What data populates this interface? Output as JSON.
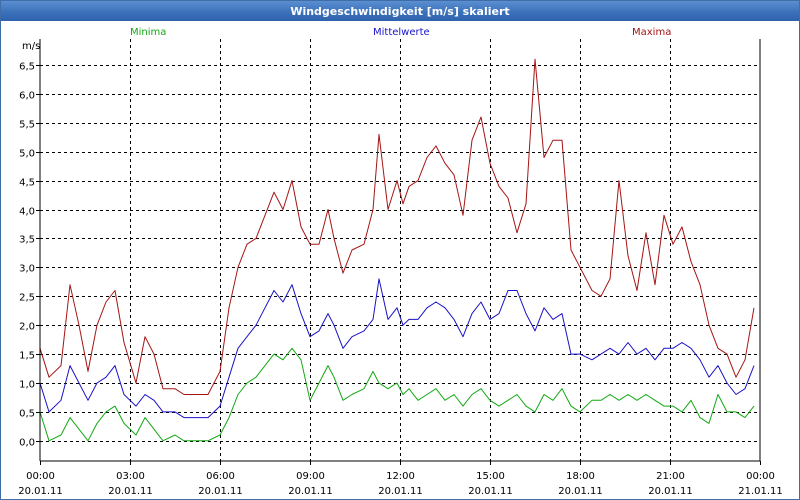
{
  "window": {
    "title": "Windgeschwindigkeit [m/s] skaliert"
  },
  "chart_data": {
    "type": "line",
    "title": "Windgeschwindigkeit [m/s] skaliert",
    "ylabel": "m/s",
    "xlabel": "",
    "ylim": [
      -0.35,
      6.95
    ],
    "yticks": [
      0,
      0.5,
      1,
      1.5,
      2,
      2.5,
      3,
      3.5,
      4,
      4.5,
      5,
      5.5,
      6,
      6.5
    ],
    "ytick_labels": [
      "0,0",
      "0,5",
      "1,0",
      "1,5",
      "2,0",
      "2,5",
      "3,0",
      "3,5",
      "4,0",
      "4,5",
      "5,0",
      "5,5",
      "6,0",
      "6,5"
    ],
    "xlim": [
      0,
      24
    ],
    "xticks": [
      0,
      3,
      6,
      9,
      12,
      15,
      18,
      21,
      24
    ],
    "xtick_labels": [
      {
        "time": "00:00",
        "date": "20.01.11"
      },
      {
        "time": "03:00",
        "date": "20.01.11"
      },
      {
        "time": "06:00",
        "date": "20.01.11"
      },
      {
        "time": "09:00",
        "date": "20.01.11"
      },
      {
        "time": "12:00",
        "date": "20.01.11"
      },
      {
        "time": "15:00",
        "date": "20.01.11"
      },
      {
        "time": "18:00",
        "date": "20.01.11"
      },
      {
        "time": "21:00",
        "date": "20.01.11"
      },
      {
        "time": "00:00",
        "date": "21.01.11"
      }
    ],
    "legend": [
      {
        "name": "Minima",
        "color": "#13a813"
      },
      {
        "name": "Mittelwerte",
        "color": "#1a12c8"
      },
      {
        "name": "Maxima",
        "color": "#a51414"
      }
    ],
    "series": [
      {
        "name": "Maxima",
        "color": "#a51414",
        "points": [
          [
            0.0,
            1.6
          ],
          [
            0.3,
            1.1
          ],
          [
            0.7,
            1.3
          ],
          [
            1.0,
            2.7
          ],
          [
            1.3,
            2.0
          ],
          [
            1.6,
            1.2
          ],
          [
            1.9,
            2.0
          ],
          [
            2.2,
            2.4
          ],
          [
            2.5,
            2.6
          ],
          [
            2.8,
            1.7
          ],
          [
            3.2,
            1.0
          ],
          [
            3.5,
            1.8
          ],
          [
            3.8,
            1.5
          ],
          [
            4.1,
            0.9
          ],
          [
            4.5,
            0.9
          ],
          [
            4.8,
            0.8
          ],
          [
            5.2,
            0.8
          ],
          [
            5.6,
            0.8
          ],
          [
            6.0,
            1.2
          ],
          [
            6.3,
            2.3
          ],
          [
            6.6,
            3.0
          ],
          [
            6.9,
            3.4
          ],
          [
            7.2,
            3.5
          ],
          [
            7.5,
            3.9
          ],
          [
            7.8,
            4.3
          ],
          [
            8.1,
            4.0
          ],
          [
            8.4,
            4.5
          ],
          [
            8.7,
            3.7
          ],
          [
            9.0,
            3.4
          ],
          [
            9.3,
            3.4
          ],
          [
            9.6,
            4.0
          ],
          [
            9.8,
            3.5
          ],
          [
            10.1,
            2.9
          ],
          [
            10.4,
            3.3
          ],
          [
            10.8,
            3.4
          ],
          [
            11.1,
            4.0
          ],
          [
            11.3,
            5.3
          ],
          [
            11.6,
            4.0
          ],
          [
            11.9,
            4.5
          ],
          [
            12.1,
            4.1
          ],
          [
            12.3,
            4.4
          ],
          [
            12.6,
            4.5
          ],
          [
            12.9,
            4.9
          ],
          [
            13.2,
            5.1
          ],
          [
            13.5,
            4.8
          ],
          [
            13.8,
            4.6
          ],
          [
            14.1,
            3.9
          ],
          [
            14.4,
            5.2
          ],
          [
            14.7,
            5.6
          ],
          [
            15.0,
            4.8
          ],
          [
            15.3,
            4.4
          ],
          [
            15.6,
            4.2
          ],
          [
            15.9,
            3.6
          ],
          [
            16.2,
            4.1
          ],
          [
            16.5,
            6.6
          ],
          [
            16.8,
            4.9
          ],
          [
            17.1,
            5.2
          ],
          [
            17.4,
            5.2
          ],
          [
            17.7,
            3.3
          ],
          [
            18.0,
            3.0
          ],
          [
            18.4,
            2.6
          ],
          [
            18.7,
            2.5
          ],
          [
            19.0,
            2.8
          ],
          [
            19.3,
            4.5
          ],
          [
            19.6,
            3.2
          ],
          [
            19.9,
            2.6
          ],
          [
            20.2,
            3.6
          ],
          [
            20.5,
            2.7
          ],
          [
            20.8,
            3.9
          ],
          [
            21.1,
            3.4
          ],
          [
            21.4,
            3.7
          ],
          [
            21.7,
            3.1
          ],
          [
            22.0,
            2.7
          ],
          [
            22.3,
            2.0
          ],
          [
            22.6,
            1.6
          ],
          [
            22.9,
            1.5
          ],
          [
            23.2,
            1.1
          ],
          [
            23.5,
            1.4
          ],
          [
            23.8,
            2.3
          ]
        ]
      },
      {
        "name": "Mittelwerte",
        "color": "#1a12c8",
        "points": [
          [
            0.0,
            1.0
          ],
          [
            0.3,
            0.5
          ],
          [
            0.7,
            0.7
          ],
          [
            1.0,
            1.3
          ],
          [
            1.3,
            1.0
          ],
          [
            1.6,
            0.7
          ],
          [
            1.9,
            1.0
          ],
          [
            2.2,
            1.1
          ],
          [
            2.5,
            1.3
          ],
          [
            2.8,
            0.8
          ],
          [
            3.2,
            0.6
          ],
          [
            3.5,
            0.8
          ],
          [
            3.8,
            0.7
          ],
          [
            4.1,
            0.5
          ],
          [
            4.5,
            0.5
          ],
          [
            4.8,
            0.4
          ],
          [
            5.2,
            0.4
          ],
          [
            5.6,
            0.4
          ],
          [
            6.0,
            0.6
          ],
          [
            6.3,
            1.1
          ],
          [
            6.6,
            1.6
          ],
          [
            6.9,
            1.8
          ],
          [
            7.2,
            2.0
          ],
          [
            7.5,
            2.3
          ],
          [
            7.8,
            2.6
          ],
          [
            8.1,
            2.4
          ],
          [
            8.4,
            2.7
          ],
          [
            8.7,
            2.2
          ],
          [
            9.0,
            1.8
          ],
          [
            9.3,
            1.9
          ],
          [
            9.6,
            2.2
          ],
          [
            9.8,
            2.0
          ],
          [
            10.1,
            1.6
          ],
          [
            10.4,
            1.8
          ],
          [
            10.8,
            1.9
          ],
          [
            11.1,
            2.1
          ],
          [
            11.3,
            2.8
          ],
          [
            11.6,
            2.1
          ],
          [
            11.9,
            2.3
          ],
          [
            12.1,
            2.0
          ],
          [
            12.3,
            2.1
          ],
          [
            12.6,
            2.1
          ],
          [
            12.9,
            2.3
          ],
          [
            13.2,
            2.4
          ],
          [
            13.5,
            2.3
          ],
          [
            13.8,
            2.1
          ],
          [
            14.1,
            1.8
          ],
          [
            14.4,
            2.2
          ],
          [
            14.7,
            2.4
          ],
          [
            15.0,
            2.1
          ],
          [
            15.3,
            2.2
          ],
          [
            15.6,
            2.6
          ],
          [
            15.9,
            2.6
          ],
          [
            16.2,
            2.2
          ],
          [
            16.5,
            1.9
          ],
          [
            16.8,
            2.3
          ],
          [
            17.1,
            2.1
          ],
          [
            17.4,
            2.2
          ],
          [
            17.7,
            1.5
          ],
          [
            18.0,
            1.5
          ],
          [
            18.4,
            1.4
          ],
          [
            18.7,
            1.5
          ],
          [
            19.0,
            1.6
          ],
          [
            19.3,
            1.5
          ],
          [
            19.6,
            1.7
          ],
          [
            19.9,
            1.5
          ],
          [
            20.2,
            1.6
          ],
          [
            20.5,
            1.4
          ],
          [
            20.8,
            1.6
          ],
          [
            21.1,
            1.6
          ],
          [
            21.4,
            1.7
          ],
          [
            21.7,
            1.6
          ],
          [
            22.0,
            1.4
          ],
          [
            22.3,
            1.1
          ],
          [
            22.6,
            1.3
          ],
          [
            22.9,
            1.0
          ],
          [
            23.2,
            0.8
          ],
          [
            23.5,
            0.9
          ],
          [
            23.8,
            1.3
          ]
        ]
      },
      {
        "name": "Minima",
        "color": "#13a813",
        "points": [
          [
            0.0,
            0.5
          ],
          [
            0.3,
            0.0
          ],
          [
            0.7,
            0.1
          ],
          [
            1.0,
            0.4
          ],
          [
            1.3,
            0.2
          ],
          [
            1.6,
            0.0
          ],
          [
            1.9,
            0.3
          ],
          [
            2.2,
            0.5
          ],
          [
            2.5,
            0.6
          ],
          [
            2.8,
            0.3
          ],
          [
            3.2,
            0.1
          ],
          [
            3.5,
            0.4
          ],
          [
            3.8,
            0.2
          ],
          [
            4.1,
            0.0
          ],
          [
            4.5,
            0.1
          ],
          [
            4.8,
            0.0
          ],
          [
            5.2,
            0.0
          ],
          [
            5.6,
            0.0
          ],
          [
            6.0,
            0.1
          ],
          [
            6.3,
            0.4
          ],
          [
            6.6,
            0.8
          ],
          [
            6.9,
            1.0
          ],
          [
            7.2,
            1.1
          ],
          [
            7.5,
            1.3
          ],
          [
            7.8,
            1.5
          ],
          [
            8.1,
            1.4
          ],
          [
            8.4,
            1.6
          ],
          [
            8.7,
            1.4
          ],
          [
            9.0,
            0.7
          ],
          [
            9.3,
            1.0
          ],
          [
            9.6,
            1.3
          ],
          [
            9.8,
            1.1
          ],
          [
            10.1,
            0.7
          ],
          [
            10.4,
            0.8
          ],
          [
            10.8,
            0.9
          ],
          [
            11.1,
            1.2
          ],
          [
            11.3,
            1.0
          ],
          [
            11.6,
            0.9
          ],
          [
            11.9,
            1.0
          ],
          [
            12.1,
            0.8
          ],
          [
            12.3,
            0.9
          ],
          [
            12.6,
            0.7
          ],
          [
            12.9,
            0.8
          ],
          [
            13.2,
            0.9
          ],
          [
            13.5,
            0.7
          ],
          [
            13.8,
            0.8
          ],
          [
            14.1,
            0.6
          ],
          [
            14.4,
            0.8
          ],
          [
            14.7,
            0.9
          ],
          [
            15.0,
            0.7
          ],
          [
            15.3,
            0.6
          ],
          [
            15.6,
            0.7
          ],
          [
            15.9,
            0.8
          ],
          [
            16.2,
            0.6
          ],
          [
            16.5,
            0.5
          ],
          [
            16.8,
            0.8
          ],
          [
            17.1,
            0.7
          ],
          [
            17.4,
            0.9
          ],
          [
            17.7,
            0.6
          ],
          [
            18.0,
            0.5
          ],
          [
            18.4,
            0.7
          ],
          [
            18.7,
            0.7
          ],
          [
            19.0,
            0.8
          ],
          [
            19.3,
            0.7
          ],
          [
            19.6,
            0.8
          ],
          [
            19.9,
            0.7
          ],
          [
            20.2,
            0.8
          ],
          [
            20.5,
            0.7
          ],
          [
            20.8,
            0.6
          ],
          [
            21.1,
            0.6
          ],
          [
            21.4,
            0.5
          ],
          [
            21.7,
            0.7
          ],
          [
            22.0,
            0.4
          ],
          [
            22.3,
            0.3
          ],
          [
            22.6,
            0.8
          ],
          [
            22.9,
            0.5
          ],
          [
            23.2,
            0.5
          ],
          [
            23.5,
            0.4
          ],
          [
            23.8,
            0.6
          ]
        ]
      }
    ]
  }
}
